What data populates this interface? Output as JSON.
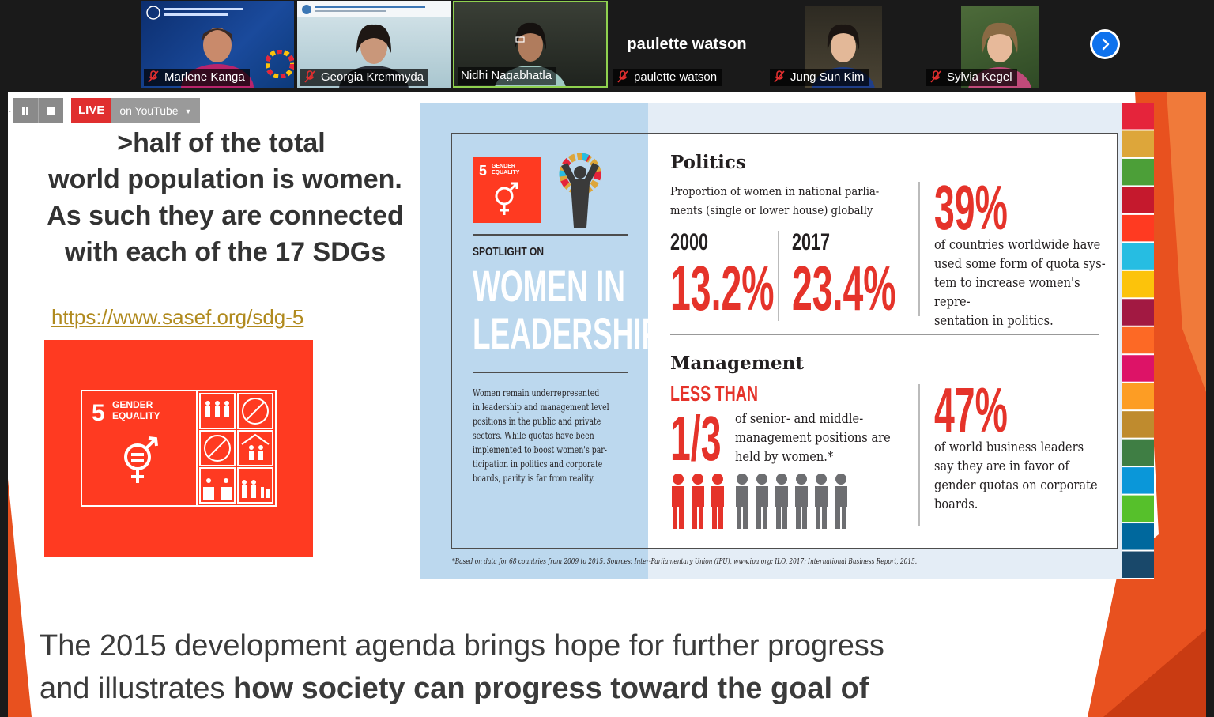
{
  "meeting": {
    "participants": [
      {
        "name": "Marlene Kanga",
        "muted": true,
        "video": true
      },
      {
        "name": "Georgia Kremmyda",
        "muted": true,
        "video": true
      },
      {
        "name": "Nidhi Nagabhatla",
        "muted": false,
        "video": true,
        "active_speaker": true
      },
      {
        "name": "paulette watson",
        "muted": true,
        "video": false,
        "display_name": "paulette watson"
      },
      {
        "name": "Jung Sun Kim",
        "muted": true,
        "video": true
      },
      {
        "name": "Sylvia Kegel",
        "muted": true,
        "video": true
      }
    ],
    "next_page_icon": "chevron-right-icon"
  },
  "stream": {
    "live_label": "LIVE",
    "platform_label": "on YouTube"
  },
  "slide": {
    "headline": {
      "line1": ">half of the total",
      "line2": "world population is women.",
      "line3": "As such they are connected",
      "line4": "with each of the 17 SDGs"
    },
    "link": "https://www.sasef.org/sdg-5",
    "sdg_card": {
      "number": "5",
      "title_line1": "GENDER",
      "title_line2": "EQUALITY"
    },
    "infographic": {
      "badge_number": "5",
      "badge_line1": "GENDER",
      "badge_line2": "EQUALITY",
      "spotlight": "SPOTLIGHT ON",
      "title_line1": "WOMEN IN",
      "title_line2": "LEADERSHIP",
      "intro": [
        "Women remain underrepresented",
        "in leadership and management level",
        "positions in the public and private",
        "sectors. While quotas have been",
        "implemented to boost women's par-",
        "ticipation in politics and corporate",
        "boards, parity is far from reality."
      ],
      "politics": {
        "heading": "Politics",
        "desc_line1": "Proportion of women in national parlia-",
        "desc_line2": "ments (single or lower house) globally",
        "year1": "2000",
        "value1": "13.2%",
        "year2": "2017",
        "value2": "23.4%",
        "stat": "39%",
        "stat_text": [
          "of countries worldwide have",
          "used some form of quota sys-",
          "tem to increase women's repre-",
          "sentation in politics."
        ]
      },
      "management": {
        "heading": "Management",
        "less_than": "LESS THAN",
        "fraction": "1/3",
        "fraction_text": [
          "of senior- and middle-",
          "management positions are",
          "held by women.*"
        ],
        "stat": "47%",
        "stat_text": [
          "of world business leaders",
          "say they are in favor of",
          "gender quotas on corporate",
          "boards."
        ]
      },
      "footnote": "*Based on data for 68 countries from 2009 to 2015.  Sources: Inter-Parliamentary Union (IPU), www.ipu.org; ILO, 2017;  International Business Report, 2015.",
      "sdg_colors": [
        "#e5243b",
        "#dda63a",
        "#4c9f38",
        "#c5192d",
        "#ff3a21",
        "#26bde2",
        "#fcc30b",
        "#a21942",
        "#fd6925",
        "#dd1367",
        "#fd9d24",
        "#bf8b2e",
        "#3f7e44",
        "#0a97d9",
        "#56c02b",
        "#00689d",
        "#19486a"
      ]
    },
    "caption": {
      "line1": "The 2015 development agenda brings hope for further progress",
      "line2_plain": "and illustrates ",
      "line2_bold": "how society can progress toward the goal of"
    }
  }
}
